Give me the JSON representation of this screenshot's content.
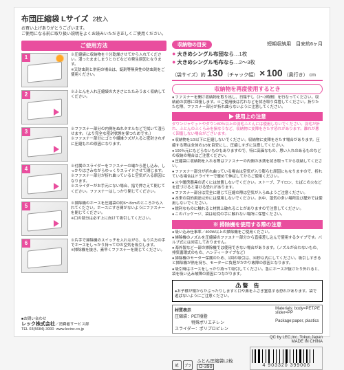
{
  "title": {
    "main": "布団圧縮袋 Lサイズ",
    "sub": "2枚入"
  },
  "intro": "お買い上げありがとうございます。\nご使用になる前に取り扱い説明をよくお読みいただき正しくご使用ください。",
  "usage_header": "ご使用方法",
  "steps": [
    {
      "n": "1",
      "text": "※圧縮袋に収納物を十分乾燥させてから入れてください。湿ったまましまうとカビなどの発生原因となります。\n※又防虫剤と併用の場合は、錠剤等無臭性の防虫剤をご使用ください。"
    },
    {
      "n": "2",
      "text": "※ふとんを入れ圧縮袋の大きさにたたみうまく収納してください。"
    },
    {
      "n": "3",
      "text": "※ファスナー部分の内側をぬれタオルなどで拭いて湿らせます。（より完全な密封状態を保つためです。）\n※ファスナー部分にゴミや繊維クズが入ると密封されずに圧縮もれの原因になります。"
    },
    {
      "n": "4",
      "text": "※付属のスライダーをファスナーの端から差し込み、しっかりはさみながらゆっくりスライドさせて閉じます。\n※ファスナー部分が折れ曲っていると空気が入る原因になります。\n※スライダーがお手元にない場合、指で押さえて閉じてください。ファスナーはしっかり閉じてください。"
    },
    {
      "n": "5",
      "text": "※掃除機のホースを圧縮袋の約6〜8cmのところから入れてください。ホースにすき間がないようにファスナーを閉じてください。\n※口の部分は必ず上に向けて吸引してください。"
    },
    {
      "n": "6",
      "text": "※片手で掃除機のスイッチを入れながら、もう片方の手でホースをしっかり持って中の空気を吸引します。\n※掃除機を抜き、素早くファスナーを閉じてください。"
    }
  ],
  "footer": {
    "contact_label": "■お問い合わせ",
    "company": "レック株式会社",
    "dept": "／消費者サービス部",
    "tel": "TEL 03(5684)-3000",
    "url": "www.lecinc.co.jp"
  },
  "right": {
    "cap_label": "収納物の目安",
    "cap_right": "短期収納用　目安約6ヶ月",
    "caps": [
      {
        "label": "大きめシングル布団なら",
        "val": "…1枚"
      },
      {
        "label": "大きめシングル毛布なら",
        "val": "…2〜3枚"
      }
    ],
    "size_prefix": "（袋サイズ）約",
    "size_w": "130",
    "size_w_note": "（チャック幅）",
    "size_x": "×",
    "size_h": "100",
    "size_h_note": "（奥行き）",
    "size_unit": "cm",
    "reuse_header": "収納物を再度使用するとき",
    "reuse_text": "ファスナーを開け収納物を取り出し、日陰干し（2〜3時間）を行なってください。収納前の状態に回復します。※ご使用後は汚れなどを拭き取り保管してください。折りたたむ際、ファスナー部分が折れ曲らないように注意してください。",
    "caution_header": "▶ 使用上の注意",
    "pink_caution": "ダウンジャケットやダウン80％以上の羽毛ふとんには使用しないでください。羽毛が折れ、ふとんのふくらみを損なうなど、収納物に支障をきたす恐れがあります。離れが悪く回復しない場合がございます。",
    "cautions": [
      "収納物を1/3以下に圧縮しないでください。収納物に支障をきたす場合があります。圧縮する際は全体の1/3を目安にし、圧縮しすぎに注意してください。",
      "100％元にもどらないものもありますので、特に高価なもの、思い入れのあるものなどの収納の場合はご注意ください。",
      "圧縮袋に収納物を入れる際はファスナーの内側の水滴を拭き取ってから収納してください。",
      "ファスナー部分が折れ曲っている場合は空気が入り膨らむ原因にもなりますので、折れている場合はドライヤーで暖めて伸ばしてからご使用ください。",
      "火や暖房器具の近くには放置しないでください。ストーブ、アイロン、たばこの火などを近づけると溶ける恐れがあります。",
      "ファスナー部分は完全に閉じて圧縮の際は空気が入らぬようご注意ください。",
      "本来の目的用途以外には使用しないでください。水中、湿気の多い場所及び屋外では使用しないでください。",
      "鋭利なものに触れると材質上破れることがありますので注意してください。",
      "このパッケージ、袋は幼児の手に触れない場所に保管ください。"
    ],
    "vac_header": "※ 掃除機を使用する際の注意",
    "vac_lines": [
      "吸い込み仕事率／400W以上の掃除機をご使用ください。",
      "掃除機のノズルを圧縮袋のファスナー部分から直接差し込んで使用するタイプです。バルブ式には対応しておりません。",
      "海外製など一部の掃除機では使用できない場合があります。（ノズルが合わないもの、排気循環式のもの、ハンディータイプなど）",
      "掃除機のモーター保護のため、1回の吸引は、30秒以内にしてください。吸引しすぎると掃除機が熱を持ち、モーターに負担がかかり故障の原因となります。",
      "吸引時はホースをしっかり持って吸引してください。急にホースが抜けたり外れると、袋を吸い込み故障の原因につながります。"
    ],
    "warn_title": "警　告",
    "warn_body": "●お子様が頭からかぶったりしますと口や鼻をふさぎ窒息する恐れがあります。袋で遊ばないようにご注意ください。",
    "materials_label": "材質表示",
    "materials_l1": "圧縮袋：PET樹脂",
    "materials_l2": "　　　　特殊ポリエチレン",
    "materials_l3": "スライダー：ポリプロピレン",
    "materials_en1": "Materials: body=PET,PE",
    "materials_en2": "slider=PP",
    "materials_en3": "Package:paper, plastics",
    "qc": "QC by LEC,Inc.,Tokyo,Japan",
    "made": "MADE IN CHINA",
    "product_line": "ふとん圧縮袋L2枚",
    "model": "O-390",
    "barcode": "4 903320 399006",
    "rec1": "紙",
    "rec2": "プラ"
  },
  "colors": {
    "pink": "#e94e9e"
  }
}
